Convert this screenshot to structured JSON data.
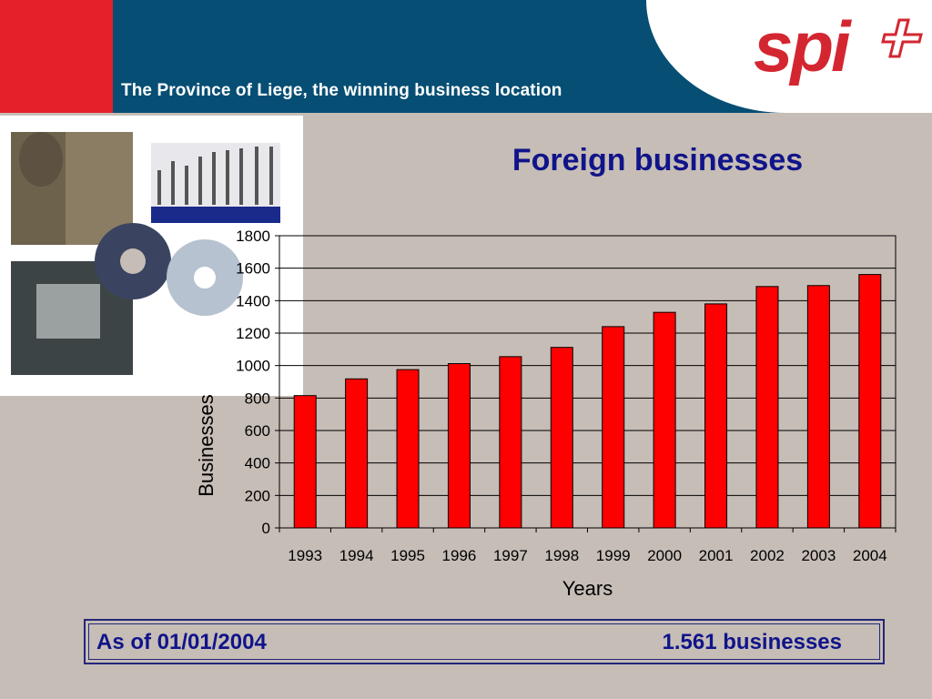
{
  "header": {
    "tagline": "The Province of Liege, the winning business location",
    "logo_text": "spi",
    "colors": {
      "navy": "#064e73",
      "red": "#e5202b"
    }
  },
  "photos": {
    "icon": "industrial-tools-photo-collage"
  },
  "chart_data": {
    "type": "bar",
    "title": "Foreign businesses",
    "xlabel": "Years",
    "ylabel": "Businesses",
    "categories": [
      "1993",
      "1994",
      "1995",
      "1996",
      "1997",
      "1998",
      "1999",
      "2000",
      "2001",
      "2002",
      "2003",
      "2004"
    ],
    "values": [
      815,
      918,
      975,
      1012,
      1055,
      1112,
      1240,
      1328,
      1380,
      1487,
      1493,
      1561
    ],
    "ylim": [
      0,
      1800
    ],
    "yticks": [
      0,
      200,
      400,
      600,
      800,
      1000,
      1200,
      1400,
      1600,
      1800
    ],
    "grid": true,
    "bar_color": "#ff0000"
  },
  "footer": {
    "left": "As of 01/01/2004",
    "right": "1.561 businesses"
  }
}
